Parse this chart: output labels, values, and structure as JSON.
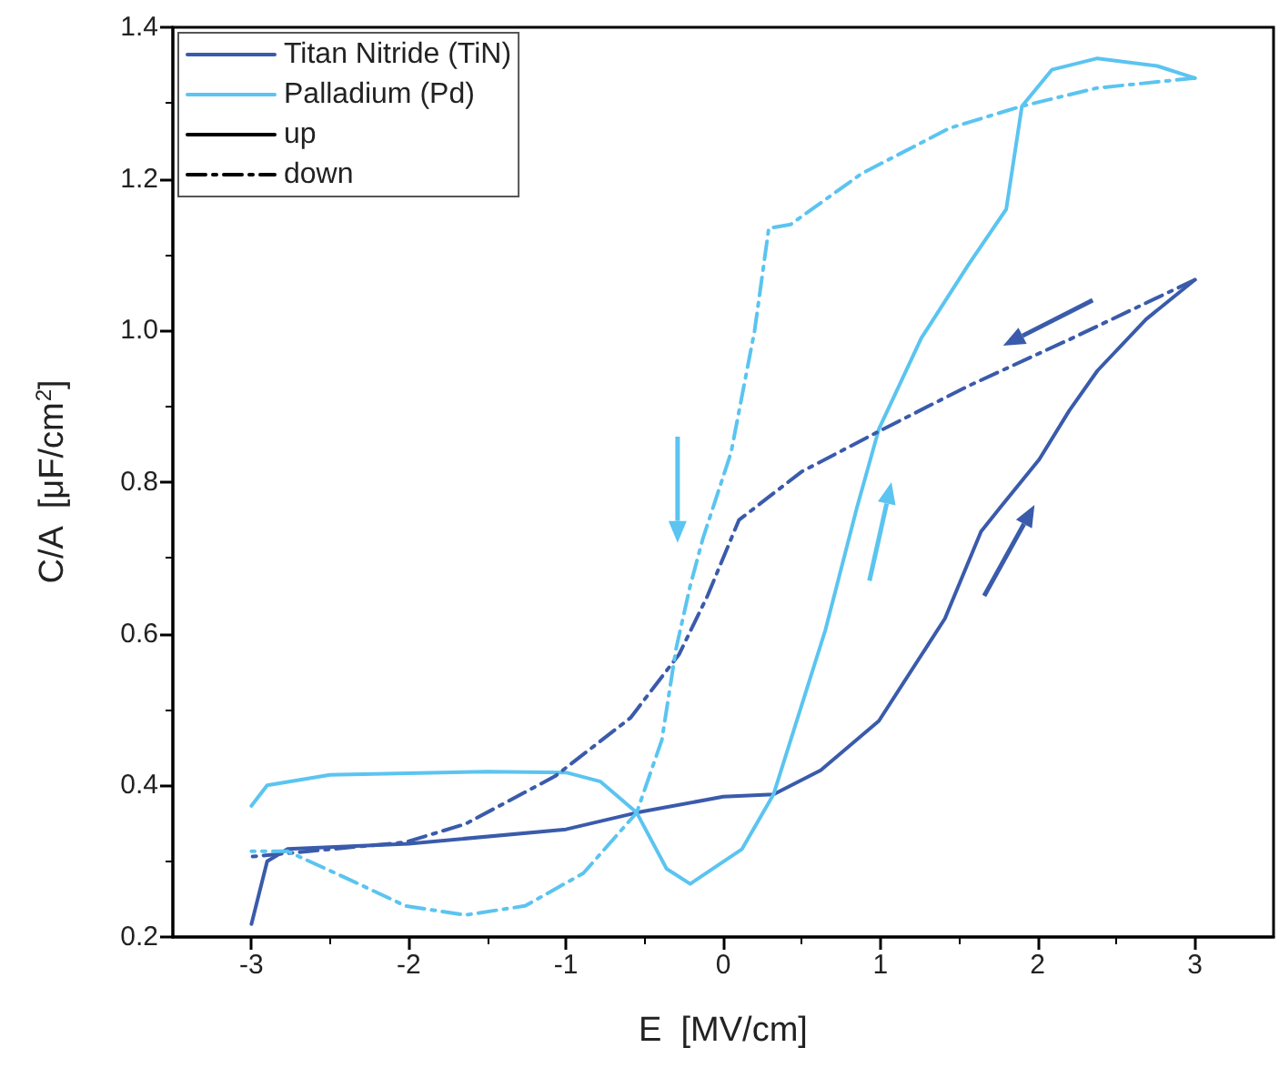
{
  "chart_data": {
    "type": "line",
    "xlabel": "E  [MV/cm]",
    "ylabel": "C/A  [μF/cm$^{2}$]",
    "xlim": [
      -3.5,
      3.5
    ],
    "xticks": [
      -3,
      -2,
      -1,
      0,
      1,
      2,
      3
    ],
    "ylim": [
      0.2,
      1.4
    ],
    "yticks": [
      0.2,
      0.4,
      0.6,
      0.8,
      {
        "value": 1,
        "label": "1.0"
      },
      1.2,
      1.4
    ],
    "grid": false,
    "legend": "top left",
    "marker": "none",
    "series": [
      {
        "name": "Titan Nitride (TiN)",
        "color": "#3a5bab",
        "line_style": "solid",
        "x": [
          -3,
          -2.9,
          -2.77,
          -2,
          -1,
          -0.55,
          0,
          0.32,
          0.62,
          0.99,
          1.41,
          1.64,
          1.76,
          2.01,
          2.2,
          2.38,
          2.69,
          3
        ],
        "values": [
          0.217,
          0.3,
          0.316,
          0.323,
          0.342,
          0.364,
          0.385,
          0.388,
          0.42,
          0.485,
          0.62,
          0.735,
          0.766,
          0.83,
          0.894,
          0.947,
          1.015,
          1.067
        ]
      },
      {
        "name": "Palladium (Pd)",
        "color": "#5bc4f0",
        "line_style": "solid",
        "x": [
          -3,
          -2.9,
          -2.5,
          -1.5,
          -1,
          -0.78,
          -0.55,
          -0.36,
          -0.21,
          0.12,
          0.32,
          0.65,
          0.85,
          0.99,
          1.26,
          1.56,
          1.8,
          1.9,
          2.09,
          2.38,
          2.76,
          3
        ],
        "values": [
          0.373,
          0.4,
          0.414,
          0.418,
          0.417,
          0.405,
          0.364,
          0.29,
          0.27,
          0.316,
          0.388,
          0.605,
          0.766,
          0.87,
          0.99,
          1.087,
          1.16,
          1.296,
          1.344,
          1.359,
          1.349,
          1.333
        ]
      },
      {
        "color": "#3a5bab",
        "line_style": "dashed",
        "x": [
          3,
          2.2,
          1.56,
          0.99,
          0.5,
          0.1,
          -0.1,
          -0.28,
          -0.59,
          -1.07,
          -1.64,
          -2.02,
          -3
        ],
        "values": [
          1.067,
          0.988,
          0.927,
          0.867,
          0.814,
          0.75,
          0.65,
          0.573,
          0.489,
          0.412,
          0.349,
          0.325,
          0.306
        ]
      },
      {
        "color": "#5bc4f0",
        "line_style": "dashed",
        "x": [
          3,
          2.38,
          1.9,
          1.44,
          0.88,
          0.43,
          0.29,
          0.2,
          0.05,
          -0.13,
          -0.21,
          -0.3,
          -0.39,
          -0.55,
          -0.89,
          -1.26,
          -1.64,
          -2.02,
          -2.39,
          -2.77,
          -3
        ],
        "values": [
          1.333,
          1.32,
          1.296,
          1.267,
          1.207,
          1.14,
          1.135,
          1.0,
          0.839,
          0.725,
          0.663,
          0.58,
          0.46,
          0.364,
          0.284,
          0.241,
          0.229,
          0.241,
          0.277,
          0.313,
          0.313
        ]
      },
      {
        "name": "up",
        "color": "#000000",
        "line_style": "solid"
      },
      {
        "name": "down",
        "color": "#000000",
        "line_style": "dashed"
      }
    ]
  }
}
